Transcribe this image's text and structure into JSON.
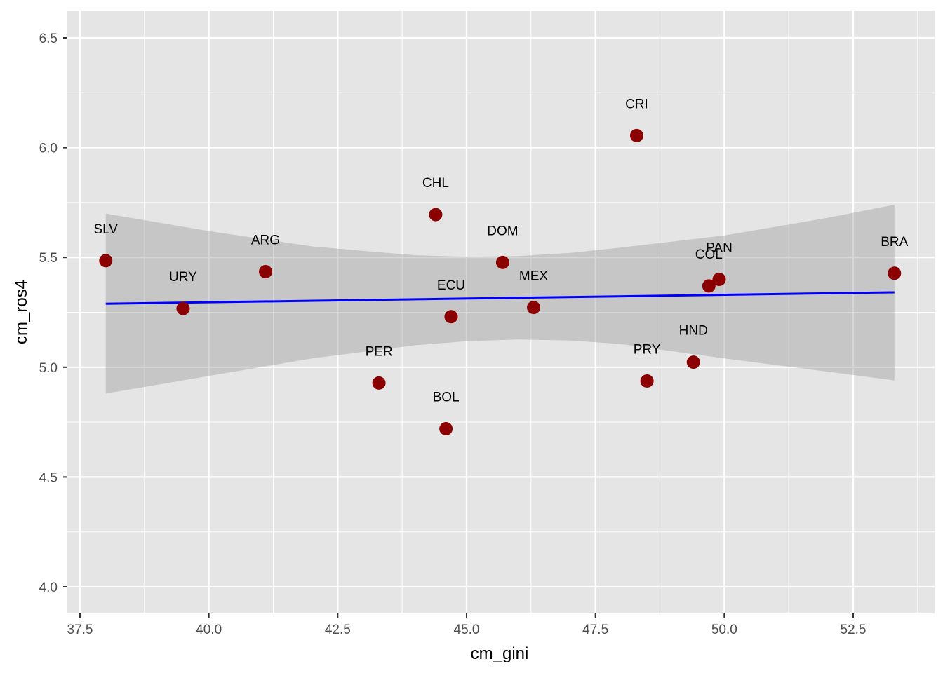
{
  "chart_data": {
    "type": "scatter",
    "xlabel": "cm_gini",
    "ylabel": "cm_ros4",
    "xlim": [
      37.5,
      53.5
    ],
    "ylim": [
      4.0,
      6.5
    ],
    "x_ticks": [
      "37.5",
      "40.0",
      "42.5",
      "45.0",
      "47.5",
      "50.0",
      "52.5"
    ],
    "y_ticks": [
      "4.0",
      "4.5",
      "5.0",
      "5.5",
      "6.0",
      "6.5"
    ],
    "grid": true,
    "points": [
      {
        "label": "SLV",
        "x": 38.0,
        "y": 5.485
      },
      {
        "label": "URY",
        "x": 39.5,
        "y": 5.267
      },
      {
        "label": "ARG",
        "x": 41.1,
        "y": 5.435
      },
      {
        "label": "PER",
        "x": 43.3,
        "y": 4.928
      },
      {
        "label": "CHL",
        "x": 44.4,
        "y": 5.695
      },
      {
        "label": "BOL",
        "x": 44.6,
        "y": 4.72
      },
      {
        "label": "ECU",
        "x": 44.7,
        "y": 5.23
      },
      {
        "label": "DOM",
        "x": 45.7,
        "y": 5.477
      },
      {
        "label": "MEX",
        "x": 46.3,
        "y": 5.272
      },
      {
        "label": "CRI",
        "x": 48.3,
        "y": 6.055
      },
      {
        "label": "PRY",
        "x": 48.5,
        "y": 4.937
      },
      {
        "label": "HND",
        "x": 49.4,
        "y": 5.023
      },
      {
        "label": "COL",
        "x": 49.7,
        "y": 5.37
      },
      {
        "label": "PAN",
        "x": 49.9,
        "y": 5.4
      },
      {
        "label": "BRA",
        "x": 53.3,
        "y": 5.428
      }
    ],
    "trend_line": {
      "x": [
        38.0,
        53.3
      ],
      "y": [
        5.289,
        5.341
      ]
    },
    "confidence_band": {
      "x": [
        38.0,
        40.0,
        42.0,
        44.0,
        45.0,
        46.0,
        47.0,
        48.0,
        50.0,
        52.0,
        53.3
      ],
      "upper": [
        5.7,
        5.62,
        5.55,
        5.51,
        5.503,
        5.506,
        5.52,
        5.545,
        5.6,
        5.68,
        5.74
      ],
      "lower": [
        4.88,
        4.96,
        5.04,
        5.1,
        5.118,
        5.126,
        5.122,
        5.105,
        5.04,
        4.98,
        4.94
      ]
    },
    "colors": {
      "panel": "#e5e5e5",
      "grid": "#ffffff",
      "point": "#8b0000",
      "line": "#0000ff",
      "band": "#999999"
    }
  }
}
